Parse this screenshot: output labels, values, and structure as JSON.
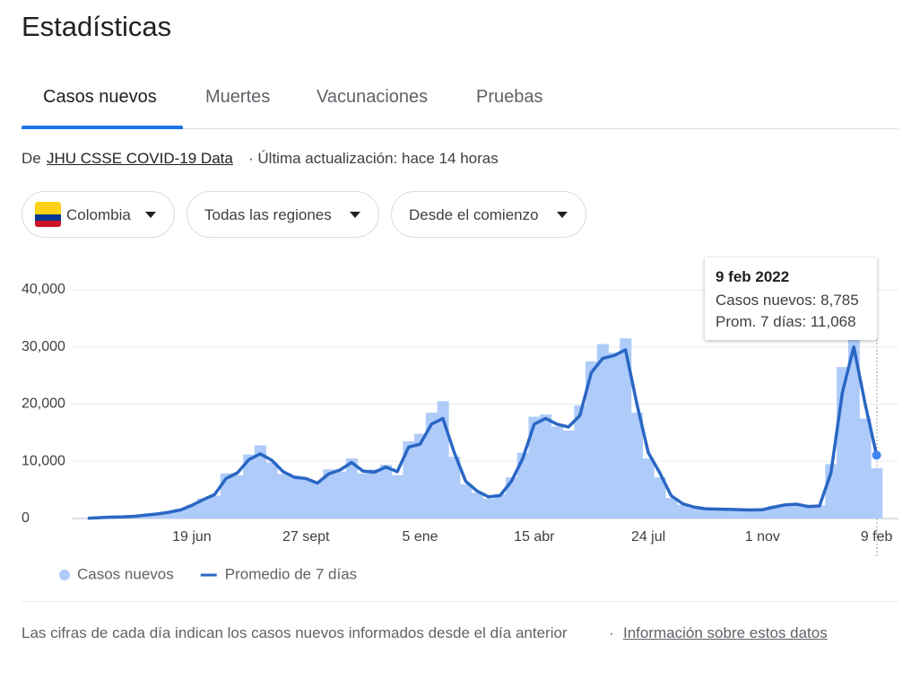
{
  "header": {
    "title": "Estadísticas"
  },
  "tabs": [
    "Casos nuevos",
    "Muertes",
    "Vacunaciones",
    "Pruebas"
  ],
  "source": {
    "prefix": "De",
    "link": "JHU CSSE COVID-19 Data",
    "suffix": "· Última actualización: hace 14 horas"
  },
  "filters": [
    "Colombia",
    "Todas las regiones",
    "Desde el comienzo"
  ],
  "chart_data": {
    "type": "bar",
    "categories": [
      null,
      null,
      null,
      null,
      null,
      null,
      null,
      null,
      null,
      "19 jun",
      null,
      null,
      null,
      null,
      null,
      null,
      null,
      null,
      null,
      "27 sept",
      null,
      null,
      null,
      null,
      null,
      null,
      null,
      null,
      null,
      "5 ene",
      null,
      null,
      null,
      null,
      null,
      null,
      null,
      null,
      null,
      "15 abr",
      null,
      null,
      null,
      null,
      null,
      null,
      null,
      null,
      null,
      "24 jul",
      null,
      null,
      null,
      null,
      null,
      null,
      null,
      null,
      null,
      "1 nov",
      null,
      null,
      null,
      null,
      null,
      null,
      null,
      null,
      null,
      "9 feb"
    ],
    "series": [
      {
        "name": "Casos nuevos",
        "type": "bar",
        "color": "#aecbfa",
        "values": [
          60,
          120,
          280,
          260,
          450,
          550,
          900,
          1000,
          1700,
          2400,
          3500,
          4000,
          7900,
          7600,
          11200,
          12800,
          9800,
          7800,
          7500,
          6800,
          6500,
          8600,
          8200,
          10500,
          7900,
          8600,
          9400,
          7600,
          13500,
          14800,
          18500,
          20500,
          10800,
          6000,
          4500,
          3500,
          4300,
          7200,
          11500,
          17800,
          18200,
          16100,
          15400,
          19800,
          27500,
          30500,
          29000,
          31500,
          18500,
          10500,
          7200,
          3600,
          2400,
          1900,
          1750,
          1600,
          1500,
          1500,
          1450,
          1600,
          2200,
          2500,
          2400,
          2000,
          2300,
          9500,
          26500,
          34000,
          17500,
          8785
        ]
      },
      {
        "name": "Promedio de 7 días",
        "type": "line",
        "color": "#2a67c4",
        "values": [
          50,
          150,
          250,
          300,
          400,
          600,
          800,
          1100,
          1500,
          2300,
          3300,
          4200,
          7000,
          8000,
          10300,
          11300,
          10200,
          8200,
          7200,
          7000,
          6200,
          7800,
          8500,
          9800,
          8300,
          8100,
          9000,
          8200,
          12500,
          13000,
          16500,
          17500,
          11500,
          6500,
          4800,
          3800,
          4000,
          6500,
          10500,
          16500,
          17500,
          16500,
          16000,
          18000,
          25500,
          28000,
          28500,
          29500,
          20000,
          11500,
          8000,
          4000,
          2600,
          2000,
          1700,
          1650,
          1600,
          1550,
          1500,
          1550,
          2000,
          2400,
          2500,
          2100,
          2200,
          8000,
          22000,
          30000,
          20000,
          11068
        ]
      }
    ],
    "ylim": [
      0,
      40000
    ],
    "yticks": [
      0,
      {
        "value": 10000,
        "label": "10,000"
      },
      {
        "value": 20000,
        "label": "20,000"
      },
      {
        "value": 30000,
        "label": "30,000"
      },
      {
        "value": 40000,
        "label": "40,000"
      }
    ],
    "grid": true
  },
  "tooltip": {
    "date": "9 feb 2022",
    "rows": [
      "Casos nuevos: 8,785",
      "Prom. 7 días: 11,068"
    ]
  },
  "footer": {
    "note": "Las cifras de cada día indican los casos nuevos informados desde el día anterior",
    "separator": "·",
    "link": "Información sobre estos datos"
  }
}
